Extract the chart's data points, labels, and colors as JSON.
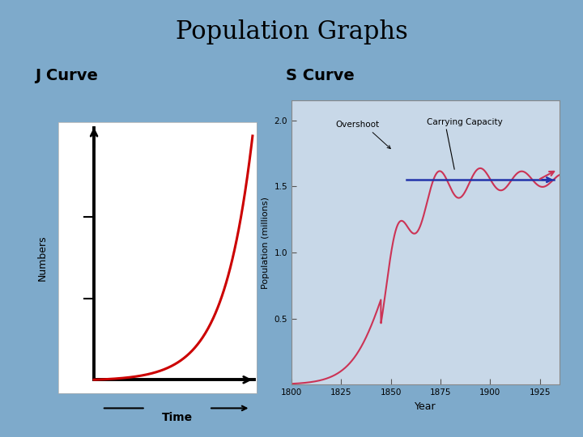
{
  "title": "Population Graphs",
  "title_fontsize": 22,
  "bg_color": "#7eaacb",
  "j_curve_label": "J Curve",
  "s_curve_label": "S Curve",
  "label_fontsize": 14,
  "j_box_bg": "#ffffff",
  "j_curve_color": "#cc0000",
  "j_axes_color": "#000000",
  "j_xlabel": "Time",
  "j_ylabel": "Numbers",
  "s_curve_color": "#cc3355",
  "s_carrying_color": "#2233aa",
  "s_bg_color": "#c8d8e8",
  "s_ylabel": "Population (millions)",
  "s_xlabel": "Year",
  "s_xlim": [
    1800,
    1935
  ],
  "s_ylim": [
    0.0,
    2.15
  ],
  "s_yticks": [
    0.5,
    1.0,
    1.5,
    2.0
  ],
  "s_xticks": [
    1800,
    1825,
    1850,
    1875,
    1900,
    1925
  ],
  "carrying_capacity": 1.55,
  "overshoot_label": "Overshoot",
  "carrying_label": "Carrying Capacity",
  "annotation_fontsize": 7.5
}
